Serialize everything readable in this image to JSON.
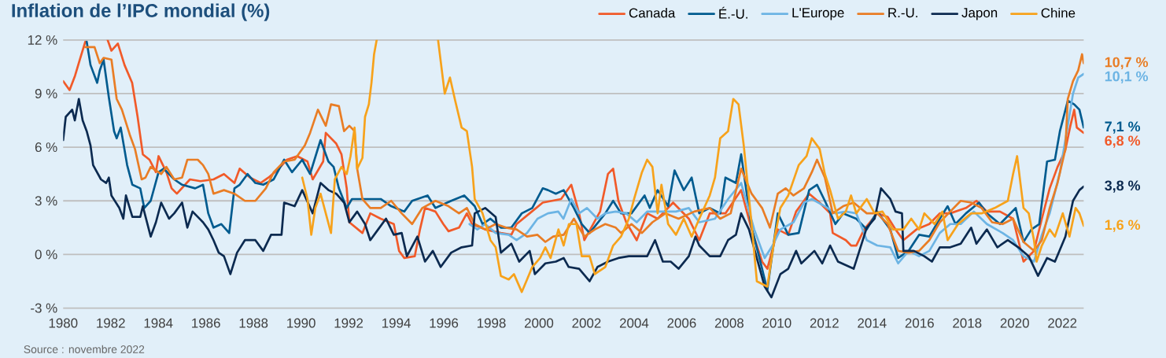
{
  "chart_data": {
    "type": "line",
    "title": "Inflation de l’IPC mondial (%)",
    "line_style": "solid",
    "grid": "y",
    "legend": "top right",
    "xlim": [
      1980,
      2022.9
    ],
    "ylim": [
      -3,
      12
    ],
    "xticks": [
      1980,
      1982,
      1984,
      1986,
      1988,
      1990,
      1992,
      1994,
      1996,
      1998,
      2000,
      2002,
      2004,
      2006,
      2008,
      2010,
      2012,
      2014,
      2016,
      2018,
      2020,
      2022
    ],
    "yticks": [
      {
        "value": -3,
        "label": "-3 %"
      },
      {
        "value": 0,
        "label": "0 %"
      },
      {
        "value": 3,
        "label": "3 %"
      },
      {
        "value": 6,
        "label": "6 %"
      },
      {
        "value": 9,
        "label": "9 %"
      },
      {
        "value": 12,
        "label": "12 %"
      }
    ],
    "annotations": [
      "Source : novembre 2022"
    ],
    "series": [
      {
        "name": "Canada",
        "color": "#f15a29",
        "value_labels": [
          null,
          null,
          null,
          null,
          null,
          null,
          null,
          null,
          null,
          null,
          null,
          null,
          null,
          null,
          null,
          null,
          null,
          null,
          null,
          null,
          null,
          null,
          null,
          null,
          null,
          null,
          null,
          null,
          null,
          null,
          null,
          null,
          null,
          null,
          null,
          null,
          null,
          null,
          null,
          null,
          null,
          null,
          null,
          null,
          null,
          null,
          null,
          null,
          null,
          null,
          null,
          null,
          null,
          null,
          null,
          null,
          null,
          null,
          null,
          null,
          null,
          null,
          null,
          null,
          null,
          null,
          null,
          null,
          null,
          null,
          null,
          null,
          null,
          null,
          null,
          null,
          null,
          null,
          null,
          null,
          null,
          null,
          null,
          null,
          null,
          null,
          null,
          null,
          null,
          null,
          null,
          null,
          null,
          null,
          null,
          null,
          null,
          null,
          null,
          null,
          null,
          null,
          null,
          null,
          null,
          null,
          null,
          null,
          null,
          null,
          null,
          null,
          null,
          null,
          "6,8 %"
        ],
        "x": [
          1980.0,
          1980.27,
          1980.5,
          1980.7,
          1980.93,
          1981.4,
          1981.87,
          1982.03,
          1982.3,
          1982.58,
          1982.9,
          1983.13,
          1983.35,
          1983.63,
          1983.9,
          1984.01,
          1984.34,
          1984.56,
          1984.78,
          1985.33,
          1985.77,
          1986.32,
          1986.76,
          1987.2,
          1987.42,
          1987.86,
          1988.3,
          1988.63,
          1989.07,
          1989.4,
          1989.84,
          1990.27,
          1990.49,
          1990.93,
          1991.04,
          1991.48,
          1991.7,
          1991.92,
          1992.03,
          1992.58,
          1992.91,
          1993.35,
          1993.9,
          1994.12,
          1994.34,
          1994.78,
          1995.0,
          1995.21,
          1995.65,
          1995.98,
          1996.2,
          1996.64,
          1996.97,
          1997.19,
          1997.74,
          1998.4,
          1998.84,
          1999.06,
          1999.61,
          2000.16,
          2000.93,
          2001.36,
          2001.69,
          2001.91,
          2002.57,
          2002.9,
          2003.12,
          2003.34,
          2003.67,
          2004.11,
          2004.55,
          2004.99,
          2005.64,
          2006.3,
          2006.74,
          2007.18,
          2007.84,
          2008.5,
          2008.94,
          2009.38,
          2009.6,
          2010.04,
          2010.48,
          2010.81,
          2011.36,
          2011.8,
          2012.24,
          2012.35,
          2012.9,
          2013.12,
          2013.34,
          2013.67,
          2014.22,
          2014.66,
          2014.99,
          2015.32,
          2015.87,
          2016.41,
          2016.85,
          2017.29,
          2017.95,
          2018.39,
          2018.83,
          2019.38,
          2019.93,
          2020.37,
          2020.81,
          2021.14,
          2021.47,
          2021.8,
          2022.12,
          2022.34,
          2022.5,
          2022.61,
          2022.9
        ],
        "values": [
          9.7,
          9.2,
          10.0,
          10.9,
          11.9,
          null,
          12.0,
          11.4,
          11.8,
          10.6,
          9.6,
          7.7,
          5.6,
          5.3,
          4.6,
          5.5,
          4.6,
          3.7,
          3.4,
          4.2,
          4.1,
          4.2,
          4.5,
          4.0,
          4.8,
          4.3,
          4.0,
          4.3,
          4.8,
          5.3,
          5.5,
          5.2,
          4.2,
          5.2,
          6.8,
          6.2,
          5.6,
          3.7,
          1.8,
          1.2,
          2.3,
          2.0,
          1.7,
          0.2,
          -0.2,
          -0.1,
          1.4,
          2.6,
          2.4,
          1.7,
          1.3,
          1.5,
          2.3,
          1.7,
          1.4,
          1.2,
          1.1,
          1.7,
          2.3,
          2.9,
          3.1,
          3.9,
          2.3,
          0.8,
          2.4,
          4.5,
          4.8,
          3.0,
          1.8,
          0.8,
          2.3,
          2.0,
          2.9,
          2.0,
          0.8,
          2.3,
          2.3,
          3.6,
          1.4,
          -0.4,
          -0.8,
          1.4,
          1.1,
          2.4,
          3.4,
          2.9,
          2.3,
          1.2,
          0.8,
          0.5,
          0.5,
          1.4,
          2.3,
          2.1,
          1.4,
          0.8,
          1.4,
          1.7,
          2.3,
          2.3,
          2.6,
          3.0,
          2.4,
          2.4,
          2.0,
          -0.4,
          0.2,
          2.0,
          3.7,
          4.9,
          5.8,
          7.2,
          8.1,
          7.1,
          6.8
        ]
      },
      {
        "name": "É.-U.",
        "color": "#005b8f",
        "value_labels": [
          null,
          null,
          null,
          null,
          null,
          null,
          null,
          null,
          null,
          null,
          null,
          null,
          null,
          null,
          null,
          null,
          null,
          null,
          null,
          null,
          null,
          null,
          null,
          null,
          null,
          null,
          null,
          null,
          null,
          null,
          null,
          null,
          null,
          null,
          null,
          null,
          null,
          null,
          null,
          null,
          null,
          null,
          null,
          null,
          null,
          null,
          null,
          null,
          null,
          null,
          null,
          null,
          null,
          null,
          null,
          null,
          null,
          null,
          null,
          null,
          null,
          null,
          null,
          null,
          null,
          null,
          null,
          null,
          null,
          null,
          null,
          null,
          null,
          null,
          null,
          null,
          null,
          null,
          null,
          null,
          null,
          null,
          null,
          null,
          null,
          null,
          null,
          null,
          null,
          null,
          null,
          null,
          null,
          null,
          null,
          null,
          null,
          null,
          null,
          null,
          null,
          null,
          null,
          null,
          null,
          null,
          null,
          null,
          null,
          null,
          null,
          null,
          null,
          null,
          null,
          null,
          "7,1 %"
        ],
        "x": [
          1980.99,
          1981.15,
          1981.43,
          1981.54,
          1981.7,
          1981.92,
          1982.14,
          1982.25,
          1982.42,
          1982.69,
          1982.91,
          1983.24,
          1983.41,
          1983.68,
          1984.01,
          1984.23,
          1984.67,
          1985.0,
          1985.55,
          1985.88,
          1986.1,
          1986.32,
          1986.65,
          1986.98,
          1987.2,
          1987.42,
          1987.75,
          1988.08,
          1988.41,
          1988.85,
          1989.29,
          1989.62,
          1990.05,
          1990.38,
          1990.82,
          1991.15,
          1991.37,
          1991.59,
          1991.92,
          1992.14,
          1992.8,
          1993.35,
          1993.79,
          1994.34,
          1994.67,
          1995.32,
          1995.65,
          1996.31,
          1996.86,
          1997.3,
          1997.63,
          1997.96,
          1998.4,
          1998.84,
          1999.28,
          1999.72,
          2000.16,
          2000.38,
          2000.71,
          2001.04,
          2001.47,
          2001.8,
          2002.13,
          2002.79,
          2003.12,
          2003.45,
          2003.89,
          2004.44,
          2004.66,
          2004.99,
          2005.43,
          2005.7,
          2006.09,
          2006.42,
          2006.74,
          2007.18,
          2007.62,
          2007.84,
          2008.28,
          2008.5,
          2008.94,
          2009.27,
          2009.6,
          2010.04,
          2010.48,
          2010.92,
          2011.36,
          2011.69,
          2012.02,
          2012.46,
          2012.79,
          2013.34,
          2013.78,
          2014.22,
          2014.77,
          2015.1,
          2015.54,
          2015.98,
          2016.41,
          2016.85,
          2017.18,
          2017.51,
          2017.95,
          2018.5,
          2018.83,
          2019.38,
          2020.04,
          2020.37,
          2020.7,
          2021.03,
          2021.36,
          2021.69,
          2021.9,
          2022.23,
          2022.5,
          2022.72,
          2022.9
        ],
        "values": [
          11.9,
          10.6,
          9.6,
          10.3,
          10.9,
          8.8,
          6.9,
          6.5,
          7.1,
          5.0,
          3.9,
          3.7,
          2.6,
          3.0,
          4.6,
          4.8,
          4.2,
          3.9,
          3.7,
          3.9,
          2.3,
          1.5,
          1.7,
          1.2,
          3.7,
          3.9,
          4.5,
          4.0,
          3.9,
          4.2,
          5.3,
          4.6,
          5.3,
          4.5,
          6.4,
          5.2,
          4.9,
          3.7,
          2.6,
          3.1,
          3.1,
          3.1,
          2.7,
          2.4,
          3.0,
          3.3,
          2.6,
          3.0,
          3.3,
          2.7,
          1.7,
          2.0,
          1.5,
          1.5,
          2.3,
          2.6,
          3.7,
          3.6,
          3.4,
          3.6,
          2.6,
          1.7,
          1.2,
          2.3,
          3.0,
          2.3,
          2.3,
          3.3,
          2.6,
          3.6,
          2.7,
          4.7,
          3.6,
          4.3,
          2.3,
          2.6,
          2.3,
          4.3,
          4.0,
          5.6,
          1.5,
          -0.2,
          -2.0,
          2.3,
          1.1,
          1.2,
          3.6,
          3.9,
          3.0,
          1.7,
          2.3,
          2.0,
          1.4,
          2.4,
          1.4,
          -0.2,
          0.2,
          1.1,
          1.0,
          2.0,
          2.7,
          1.7,
          2.3,
          2.9,
          2.3,
          1.7,
          2.6,
          0.7,
          1.4,
          1.7,
          5.2,
          5.3,
          6.9,
          8.6,
          8.4,
          8.1,
          7.1
        ]
      },
      {
        "name": "L'Europe",
        "color": "#6cb4e4",
        "value_labels": [
          null,
          null,
          null,
          null,
          null,
          null,
          null,
          null,
          null,
          null,
          null,
          null,
          null,
          null,
          null,
          null,
          null,
          null,
          null,
          null,
          null,
          null,
          null,
          null,
          null,
          null,
          null,
          null,
          null,
          null,
          null,
          null,
          null,
          null,
          null,
          null,
          null,
          null,
          null,
          null,
          null,
          null,
          null,
          null,
          null,
          null,
          null,
          null,
          null,
          null,
          null,
          null,
          null,
          null,
          null,
          null,
          null,
          null,
          null,
          null,
          "10,1 %"
        ],
        "x": [
          1997.08,
          1997.41,
          1997.74,
          1998.18,
          1998.73,
          1999.06,
          1999.5,
          1999.94,
          2000.38,
          2000.81,
          2001.03,
          2001.36,
          2001.69,
          2002.02,
          2002.46,
          2002.79,
          2003.23,
          2003.67,
          2004.11,
          2004.55,
          2005.21,
          2005.76,
          2006.3,
          2006.74,
          2007.4,
          2007.95,
          2008.5,
          2009.05,
          2009.49,
          2009.82,
          2010.15,
          2010.7,
          2011.14,
          2011.47,
          2012.02,
          2012.46,
          2012.9,
          2013.34,
          2013.78,
          2014.22,
          2014.77,
          2015.1,
          2015.54,
          2015.98,
          2016.41,
          2016.85,
          2017.29,
          2017.73,
          2018.28,
          2018.83,
          2019.49,
          2019.93,
          2020.37,
          2020.81,
          2021.14,
          2021.47,
          2021.9,
          2022.23,
          2022.45,
          2022.67,
          2022.9
        ],
        "values": [
          1.7,
          1.4,
          1.7,
          1.2,
          1.1,
          0.8,
          1.2,
          2.0,
          2.3,
          2.4,
          2.0,
          3.1,
          2.3,
          2.6,
          2.0,
          2.3,
          2.4,
          2.3,
          1.8,
          2.4,
          2.4,
          2.4,
          2.6,
          1.8,
          2.0,
          3.1,
          4.0,
          1.4,
          -0.2,
          0.5,
          1.4,
          1.8,
          2.9,
          3.1,
          2.7,
          2.3,
          2.4,
          2.3,
          0.8,
          0.5,
          0.4,
          -0.5,
          0.2,
          -0.1,
          0.2,
          1.2,
          1.7,
          1.7,
          2.4,
          1.7,
          1.2,
          0.8,
          -0.1,
          -0.4,
          1.1,
          2.3,
          4.6,
          7.2,
          9.0,
          9.9,
          10.1
        ]
      },
      {
        "name": "R.-U.",
        "color": "#e97d25",
        "value_labels": [
          null,
          null,
          null,
          null,
          null,
          null,
          null,
          null,
          null,
          null,
          null,
          null,
          null,
          null,
          null,
          null,
          null,
          null,
          null,
          null,
          null,
          null,
          null,
          null,
          null,
          null,
          null,
          null,
          null,
          null,
          null,
          null,
          null,
          null,
          null,
          null,
          null,
          null,
          null,
          null,
          null,
          null,
          null,
          null,
          null,
          null,
          null,
          null,
          null,
          null,
          null,
          null,
          null,
          null,
          null,
          null,
          null,
          null,
          null,
          null,
          null,
          null,
          null,
          null,
          null,
          null,
          null,
          null,
          null,
          null,
          null,
          null,
          null,
          null,
          null,
          null,
          null,
          null,
          null,
          null,
          null,
          null,
          null,
          null,
          null,
          null,
          null,
          null,
          null,
          null,
          null,
          null,
          null,
          null,
          null,
          null,
          null,
          null,
          null,
          null,
          null,
          null,
          null,
          null,
          null,
          null,
          null,
          null,
          null,
          null,
          null,
          null,
          null,
          null,
          "10,7 %"
        ],
        "x": [
          1980.93,
          1981.32,
          1981.54,
          1981.7,
          1982.03,
          1982.25,
          1982.47,
          1982.8,
          1983.02,
          1983.3,
          1983.46,
          1983.68,
          1984.12,
          1984.34,
          1984.67,
          1985.0,
          1985.22,
          1985.66,
          1985.88,
          1986.1,
          1986.32,
          1986.76,
          1987.2,
          1987.64,
          1988.08,
          1988.52,
          1988.85,
          1989.29,
          1989.73,
          1990.16,
          1990.38,
          1990.71,
          1991.04,
          1991.26,
          1991.59,
          1991.81,
          1992.03,
          1992.25,
          1992.36,
          1992.58,
          1992.91,
          1993.35,
          1993.79,
          1994.23,
          1994.67,
          1995.1,
          1995.65,
          1996.2,
          1996.64,
          1996.97,
          1997.3,
          1997.74,
          1998.18,
          1998.62,
          1999.06,
          1999.5,
          1999.94,
          2000.27,
          2000.6,
          2001.04,
          2001.47,
          2001.91,
          2002.35,
          2002.79,
          2003.23,
          2003.45,
          2003.89,
          2004.33,
          2004.77,
          2005.32,
          2005.87,
          2006.53,
          2007.18,
          2007.62,
          2008.06,
          2008.5,
          2008.94,
          2009.38,
          2009.71,
          2010.04,
          2010.37,
          2010.7,
          2011.14,
          2011.47,
          2011.69,
          2012.02,
          2012.35,
          2012.79,
          2013.23,
          2013.78,
          2014.22,
          2014.66,
          2015.1,
          2015.54,
          2015.98,
          2016.41,
          2016.85,
          2017.29,
          2017.73,
          2018.17,
          2018.61,
          2019.05,
          2019.49,
          2019.93,
          2020.37,
          2020.81,
          2021.14,
          2021.47,
          2021.8,
          2022.13,
          2022.23,
          2022.45,
          2022.67,
          2022.83,
          2022.9
        ],
        "values": [
          11.6,
          11.6,
          10.7,
          11.0,
          10.9,
          8.7,
          8.1,
          6.7,
          5.9,
          4.2,
          4.3,
          4.9,
          4.5,
          4.9,
          4.2,
          4.3,
          5.3,
          5.3,
          5.0,
          4.5,
          3.4,
          3.6,
          3.4,
          3.0,
          3.0,
          3.7,
          4.6,
          5.2,
          5.3,
          6.1,
          6.8,
          8.1,
          7.2,
          8.4,
          8.3,
          6.9,
          7.2,
          6.9,
          4.8,
          3.1,
          2.6,
          2.6,
          3.0,
          2.3,
          1.7,
          2.6,
          3.0,
          2.7,
          2.3,
          2.6,
          1.7,
          1.4,
          1.7,
          1.5,
          1.4,
          1.0,
          1.1,
          0.7,
          1.0,
          1.1,
          2.0,
          1.0,
          1.4,
          1.7,
          1.5,
          1.2,
          1.7,
          1.2,
          1.8,
          2.3,
          2.0,
          2.4,
          2.6,
          2.0,
          2.3,
          4.8,
          3.4,
          2.6,
          1.5,
          3.4,
          3.7,
          3.3,
          3.7,
          4.6,
          5.3,
          4.3,
          2.3,
          2.7,
          2.9,
          2.3,
          2.3,
          1.7,
          0.2,
          0.1,
          0.2,
          0.8,
          1.8,
          2.4,
          3.0,
          2.9,
          2.6,
          1.8,
          1.7,
          2.0,
          0.7,
          0.2,
          0.8,
          2.6,
          4.0,
          5.9,
          8.7,
          9.7,
          10.3,
          11.2,
          10.7
        ]
      },
      {
        "name": "Japon",
        "color": "#0c2a50",
        "value_labels": [
          null,
          null,
          null,
          null,
          null,
          null,
          null,
          null,
          null,
          null,
          null,
          null,
          null,
          null,
          null,
          null,
          null,
          null,
          null,
          null,
          null,
          null,
          null,
          null,
          null,
          null,
          null,
          null,
          null,
          null,
          null,
          null,
          null,
          null,
          null,
          null,
          null,
          null,
          null,
          null,
          null,
          null,
          null,
          null,
          null,
          null,
          null,
          null,
          null,
          null,
          null,
          null,
          null,
          null,
          null,
          null,
          null,
          null,
          null,
          null,
          null,
          null,
          null,
          null,
          null,
          null,
          null,
          null,
          null,
          null,
          null,
          null,
          null,
          null,
          null,
          null,
          null,
          null,
          null,
          null,
          null,
          null,
          null,
          null,
          null,
          null,
          null,
          null,
          null,
          null,
          null,
          null,
          null,
          null,
          null,
          null,
          null,
          null,
          null,
          null,
          null,
          null,
          null,
          null,
          null,
          null,
          null,
          null,
          null,
          null,
          null,
          null,
          null,
          null,
          null,
          null,
          null,
          null,
          null,
          null,
          null,
          null,
          null,
          null,
          null,
          null,
          null,
          null,
          null,
          null,
          null,
          null,
          null,
          null,
          "3,8 %"
        ],
        "x": [
          1980.0,
          1980.11,
          1980.38,
          1980.49,
          1980.66,
          1980.82,
          1980.99,
          1981.15,
          1981.26,
          1981.59,
          1981.81,
          1981.92,
          1982.03,
          1982.36,
          1982.53,
          1982.64,
          1982.91,
          1983.24,
          1983.35,
          1983.68,
          1983.9,
          1984.12,
          1984.45,
          1984.67,
          1985.0,
          1985.22,
          1985.44,
          1985.88,
          1986.1,
          1986.32,
          1986.54,
          1986.76,
          1987.03,
          1987.31,
          1987.64,
          1988.08,
          1988.41,
          1988.74,
          1989.18,
          1989.29,
          1989.73,
          1990.05,
          1990.49,
          1990.82,
          1991.15,
          1991.48,
          1991.81,
          1992.03,
          1992.36,
          1992.69,
          1992.91,
          1993.24,
          1993.57,
          1993.9,
          1994.23,
          1994.45,
          1994.89,
          1995.21,
          1995.54,
          1995.87,
          1996.31,
          1996.75,
          1997.19,
          1997.3,
          1997.74,
          1998.18,
          1998.4,
          1998.84,
          1999.17,
          1999.61,
          1999.83,
          2000.27,
          2000.71,
          2001.04,
          2001.25,
          2001.69,
          2002.13,
          2002.46,
          2002.9,
          2003.34,
          2003.78,
          2004.22,
          2004.55,
          2004.88,
          2005.21,
          2005.54,
          2005.87,
          2006.3,
          2006.58,
          2006.74,
          2007.18,
          2007.62,
          2007.95,
          2008.28,
          2008.5,
          2008.83,
          2009.16,
          2009.49,
          2009.77,
          2010.15,
          2010.48,
          2010.81,
          2011.03,
          2011.58,
          2011.91,
          2012.24,
          2012.57,
          2013.23,
          2013.78,
          2014.11,
          2014.38,
          2014.77,
          2014.99,
          2015.26,
          2015.32,
          2015.76,
          2016.2,
          2016.52,
          2016.85,
          2017.29,
          2017.73,
          2018.17,
          2018.39,
          2018.83,
          2019.27,
          2019.71,
          2020.15,
          2020.59,
          2020.98,
          2021.36,
          2021.69,
          2022.13,
          2022.45,
          2022.72,
          2022.9
        ],
        "values": [
          6.4,
          7.7,
          8.1,
          7.5,
          8.7,
          7.5,
          6.9,
          6.1,
          5.0,
          4.2,
          4.0,
          4.3,
          3.3,
          2.6,
          2.0,
          3.3,
          2.1,
          2.1,
          2.7,
          1.0,
          1.8,
          2.9,
          2.0,
          2.3,
          2.9,
          1.5,
          2.4,
          1.8,
          1.4,
          0.8,
          0.1,
          -0.1,
          -1.1,
          0.1,
          0.8,
          0.8,
          0.2,
          1.1,
          1.1,
          2.9,
          2.7,
          3.6,
          2.3,
          4.0,
          3.6,
          3.4,
          2.9,
          1.8,
          2.4,
          1.7,
          0.8,
          1.4,
          2.0,
          1.1,
          1.2,
          -0.1,
          1.0,
          -0.4,
          0.2,
          -0.7,
          0.1,
          0.4,
          0.5,
          2.3,
          2.6,
          2.1,
          0.1,
          0.6,
          -0.4,
          0.2,
          -1.1,
          -0.5,
          -0.4,
          -0.2,
          -0.7,
          -0.8,
          -1.5,
          -0.7,
          -0.4,
          -0.2,
          -0.1,
          -0.1,
          -0.1,
          0.8,
          -0.4,
          -0.4,
          -0.8,
          -0.1,
          1.0,
          0.5,
          -0.1,
          -0.1,
          0.8,
          1.1,
          2.3,
          1.4,
          -0.2,
          -1.8,
          -2.4,
          -1.1,
          -0.8,
          0.2,
          -0.5,
          0.2,
          -0.5,
          0.5,
          -0.4,
          -0.8,
          1.5,
          2.0,
          3.7,
          3.1,
          2.4,
          2.3,
          0.2,
          0.2,
          -0.1,
          -0.4,
          0.4,
          0.4,
          0.6,
          1.5,
          0.6,
          1.4,
          0.4,
          0.8,
          0.4,
          -0.1,
          -1.2,
          -0.2,
          -0.4,
          1.0,
          3.0,
          3.6,
          3.8
        ]
      },
      {
        "name": "Chine",
        "color": "#f7a21b",
        "value_labels": [
          null,
          null,
          null,
          null,
          null,
          null,
          null,
          null,
          null,
          null,
          null,
          null,
          null,
          null,
          null,
          null,
          null,
          null,
          null,
          null,
          null,
          null,
          null,
          null,
          null,
          null,
          null,
          null,
          null,
          null,
          null,
          null,
          null,
          null,
          null,
          null,
          null,
          null,
          null,
          null,
          null,
          null,
          null,
          null,
          null,
          null,
          null,
          null,
          null,
          null,
          null,
          null,
          null,
          null,
          null,
          null,
          null,
          null,
          null,
          null,
          null,
          null,
          null,
          null,
          null,
          null,
          null,
          null,
          null,
          null,
          null,
          null,
          null,
          null,
          null,
          null,
          null,
          null,
          null,
          null,
          null,
          null,
          null,
          null,
          null,
          null,
          null,
          null,
          null,
          null,
          null,
          null,
          null,
          null,
          null,
          null,
          null,
          null,
          null,
          null,
          null,
          null,
          null,
          null,
          null,
          null,
          null,
          null,
          null,
          null,
          null,
          null,
          null,
          null,
          "1,6 %"
        ],
        "x": [
          1990.05,
          1990.27,
          1990.43,
          1990.6,
          1990.82,
          1991.04,
          1991.26,
          1991.42,
          1991.7,
          1991.92,
          1992.08,
          1992.25,
          1992.36,
          1992.58,
          1992.69,
          1992.85,
          1992.96,
          1993.07,
          1993.18,
          1994.5,
          1995.76,
          1996.04,
          1996.26,
          1996.48,
          1996.75,
          1996.97,
          1997.19,
          1997.3,
          1997.63,
          1997.96,
          1998.18,
          1998.4,
          1998.73,
          1998.95,
          1999.28,
          1999.5,
          1999.72,
          2000.05,
          2000.27,
          2000.49,
          2000.82,
          2001.04,
          2001.26,
          2001.58,
          2001.8,
          2002.13,
          2002.35,
          2002.79,
          2003.12,
          2003.45,
          2003.78,
          2004.0,
          2004.33,
          2004.55,
          2004.77,
          2004.99,
          2005.15,
          2005.43,
          2005.76,
          2006.09,
          2006.42,
          2006.74,
          2007.18,
          2007.4,
          2007.62,
          2007.95,
          2008.17,
          2008.39,
          2008.61,
          2008.94,
          2009.16,
          2009.6,
          2009.93,
          2010.15,
          2010.48,
          2010.92,
          2011.25,
          2011.47,
          2011.8,
          2012.02,
          2012.24,
          2012.57,
          2012.9,
          2013.12,
          2013.34,
          2013.78,
          2014.11,
          2014.44,
          2014.88,
          2015.32,
          2015.65,
          2015.98,
          2016.2,
          2016.63,
          2016.96,
          2017.18,
          2017.62,
          2018.17,
          2018.61,
          2019.16,
          2019.71,
          2019.93,
          2020.1,
          2020.37,
          2020.59,
          2020.81,
          2020.92,
          2021.14,
          2021.47,
          2021.69,
          2022.02,
          2022.3,
          2022.56,
          2022.72,
          2022.9
        ],
        "values": [
          4.3,
          3.1,
          1.1,
          2.6,
          3.4,
          2.3,
          1.2,
          4.2,
          4.9,
          4.5,
          5.5,
          7.1,
          4.8,
          5.4,
          7.7,
          8.4,
          9.6,
          11.2,
          12.0,
          null,
          12.0,
          9.0,
          9.9,
          8.6,
          7.1,
          6.9,
          4.9,
          3.1,
          2.3,
          0.8,
          0.4,
          -1.2,
          -1.4,
          -1.1,
          -2.1,
          -1.4,
          -0.7,
          -0.2,
          0.4,
          -0.2,
          1.4,
          0.5,
          1.7,
          1.7,
          -0.1,
          -0.1,
          -1.1,
          -0.7,
          0.5,
          1.0,
          2.0,
          3.1,
          4.6,
          5.3,
          4.9,
          2.3,
          3.9,
          1.7,
          1.1,
          2.0,
          1.0,
          2.0,
          3.3,
          4.3,
          6.5,
          6.9,
          8.7,
          8.4,
          6.1,
          1.7,
          -1.5,
          -1.8,
          1.1,
          2.6,
          3.3,
          5.0,
          5.5,
          6.5,
          5.9,
          4.5,
          3.6,
          2.0,
          2.4,
          3.3,
          2.3,
          3.1,
          2.3,
          2.4,
          1.4,
          1.4,
          2.0,
          1.4,
          2.3,
          1.7,
          2.4,
          0.8,
          1.7,
          2.3,
          2.3,
          2.6,
          3.0,
          4.5,
          5.5,
          2.6,
          2.3,
          0.8,
          -0.4,
          0.5,
          1.4,
          1.0,
          2.3,
          1.0,
          2.6,
          2.3,
          1.6
        ]
      }
    ]
  }
}
